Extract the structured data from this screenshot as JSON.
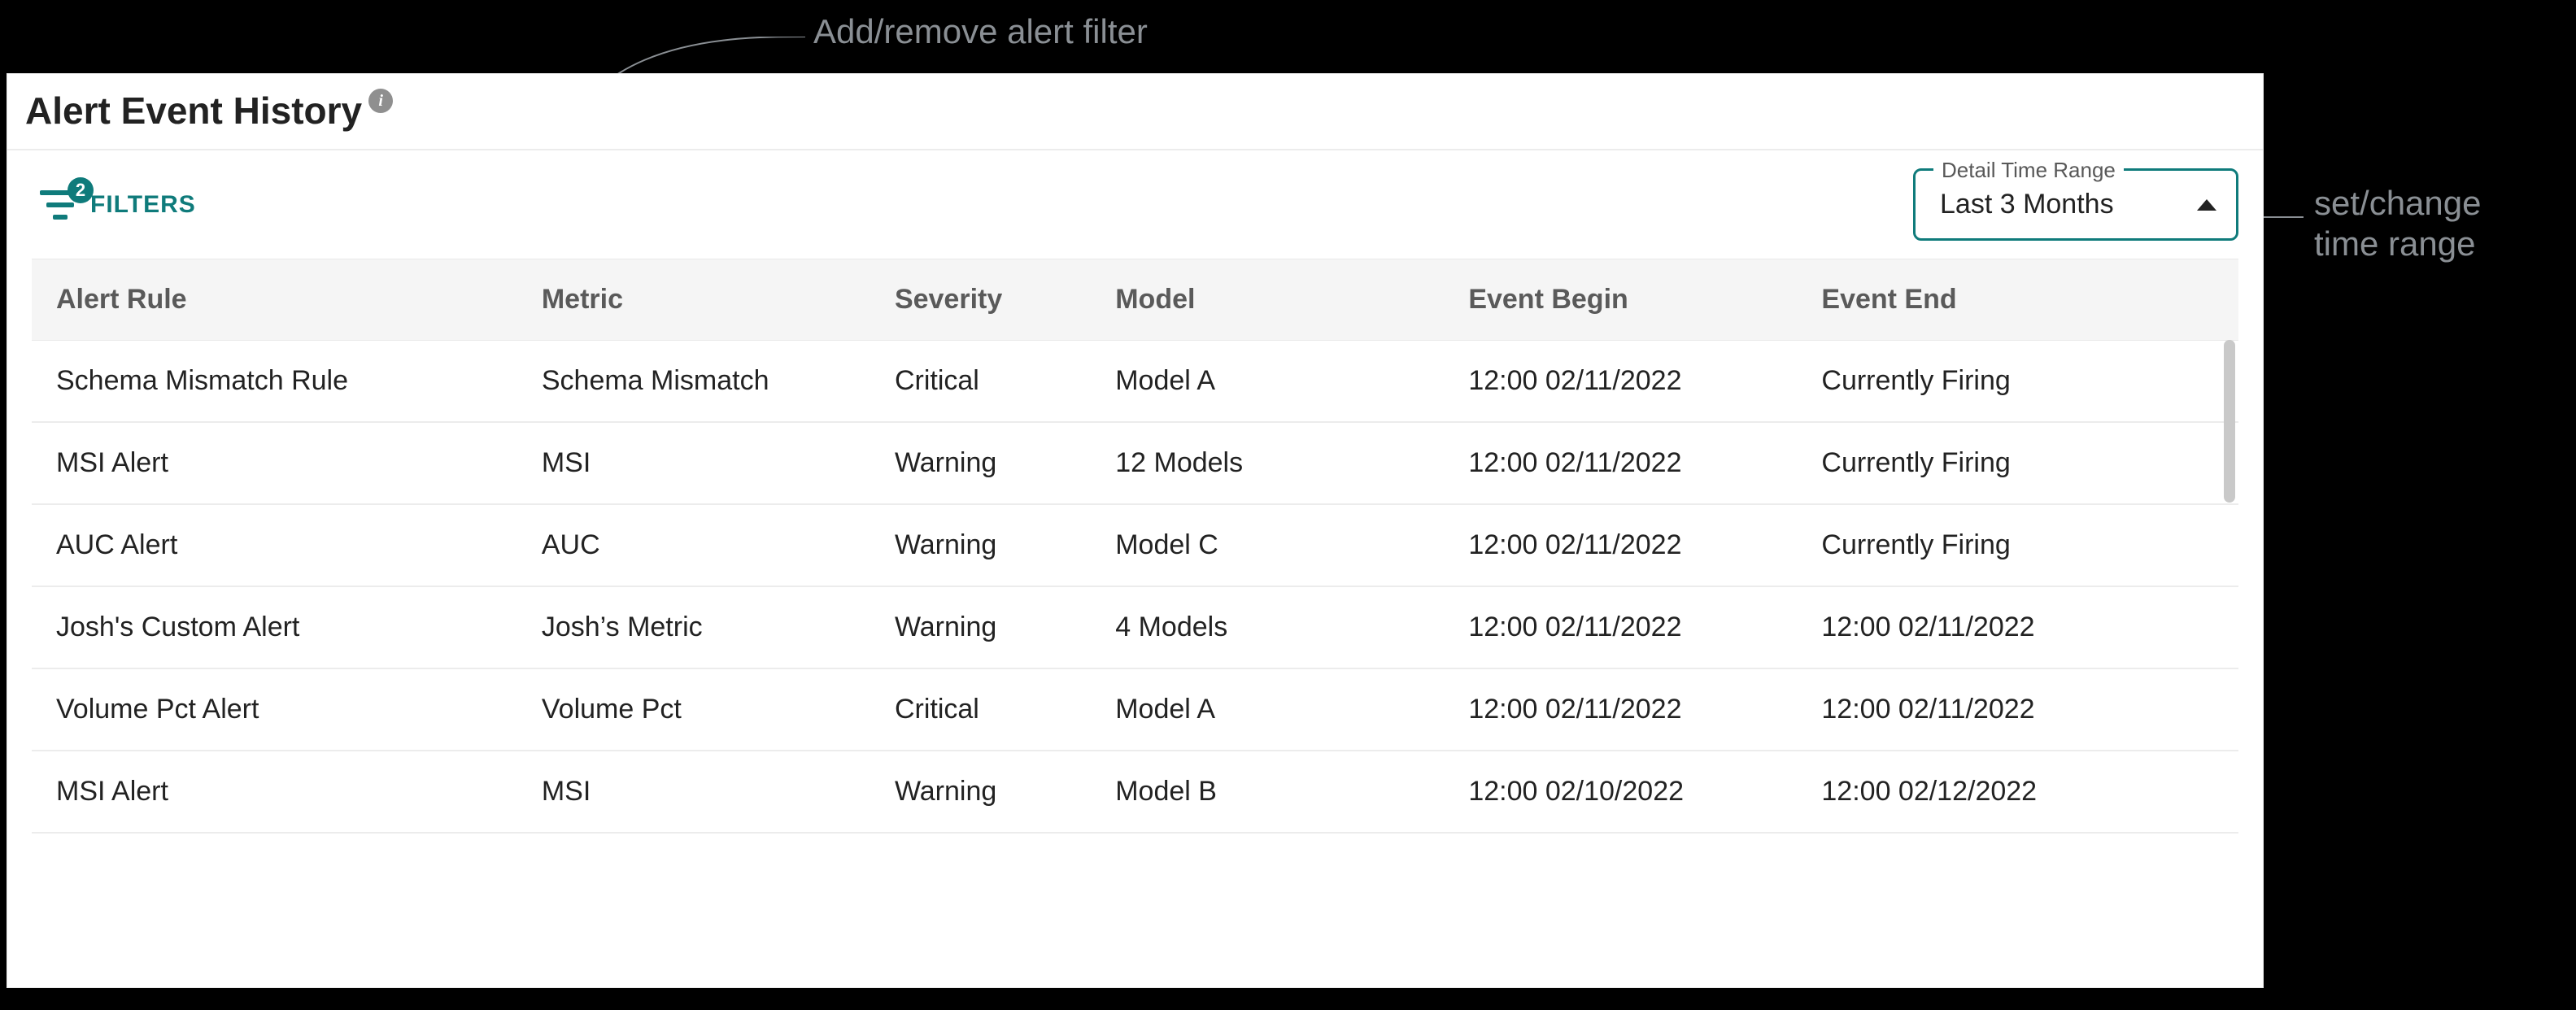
{
  "callouts": {
    "top": "Add/remove alert filter",
    "right_line1": "set/change",
    "right_line2": "time range",
    "line_color": "#8a8f94"
  },
  "panel": {
    "title": "Alert Event History",
    "info_glyph": "i"
  },
  "filters": {
    "count": "2",
    "label": "FILTERS",
    "accent_color": "#0f7b7b"
  },
  "timerange": {
    "legend": "Detail Time Range",
    "value": "Last 3 Months"
  },
  "table": {
    "columns": [
      "Alert Rule",
      "Metric",
      "Severity",
      "Model",
      "Event Begin",
      "Event End"
    ],
    "rows": [
      [
        "Schema Mismatch Rule",
        "Schema Mismatch",
        "Critical",
        "Model A",
        "12:00 02/11/2022",
        "Currently Firing"
      ],
      [
        "MSI Alert",
        "MSI",
        "Warning",
        "12 Models",
        "12:00 02/11/2022",
        "Currently Firing"
      ],
      [
        "AUC Alert",
        "AUC",
        "Warning",
        "Model C",
        "12:00 02/11/2022",
        "Currently Firing"
      ],
      [
        "Josh's Custom Alert",
        "Josh’s Metric",
        "Warning",
        "4 Models",
        "12:00 02/11/2022",
        "12:00 02/11/2022"
      ],
      [
        "Volume Pct Alert",
        "Volume Pct",
        "Critical",
        "Model A",
        "12:00 02/11/2022",
        "12:00 02/11/2022"
      ],
      [
        "MSI Alert",
        "MSI",
        "Warning",
        "Model B",
        "12:00 02/10/2022",
        "12:00 02/12/2022"
      ]
    ],
    "header_bg": "#f5f5f5",
    "row_border": "#ececec",
    "text_color": "#222222",
    "header_text_color": "#5a5a5a"
  },
  "colors": {
    "panel_bg": "#ffffff",
    "page_bg": "#000000",
    "scrollbar": "#c9c9c9"
  }
}
